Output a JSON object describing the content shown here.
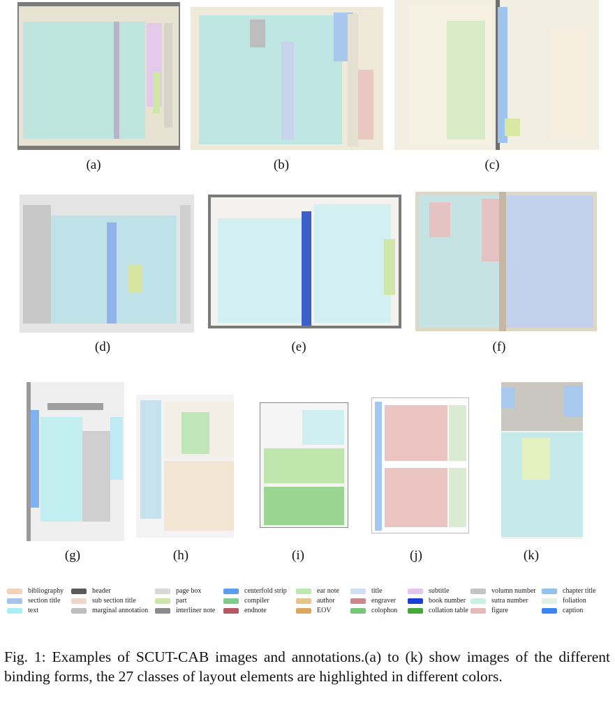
{
  "panels": [
    {
      "id": "a",
      "label": "(a)"
    },
    {
      "id": "b",
      "label": "(b)"
    },
    {
      "id": "c",
      "label": "(c)"
    },
    {
      "id": "d",
      "label": "(d)"
    },
    {
      "id": "e",
      "label": "(e)"
    },
    {
      "id": "f",
      "label": "(f)"
    },
    {
      "id": "g",
      "label": "(g)"
    },
    {
      "id": "h",
      "label": "(h)"
    },
    {
      "id": "i",
      "label": "(i)"
    },
    {
      "id": "j",
      "label": "(j)"
    },
    {
      "id": "k",
      "label": "(k)"
    }
  ],
  "legend": [
    {
      "label": "bibliography",
      "color": "#f2d2b8"
    },
    {
      "label": "section title",
      "color": "#a9c4ea"
    },
    {
      "label": "text",
      "color": "#aaeef4"
    },
    {
      "label": "header",
      "color": "#5a5a5a"
    },
    {
      "label": "sub section title",
      "color": "#efd6c8"
    },
    {
      "label": "marginal annotation",
      "color": "#bdbdbd"
    },
    {
      "label": "page box",
      "color": "#d9d9d9"
    },
    {
      "label": "part",
      "color": "#cfe6a8"
    },
    {
      "label": "interliner note",
      "color": "#8a8a8a"
    },
    {
      "label": "centerfold strip",
      "color": "#5e9cf0"
    },
    {
      "label": "compiler",
      "color": "#80cc8c"
    },
    {
      "label": "endnote",
      "color": "#b55866"
    },
    {
      "label": "ear note",
      "color": "#b9e9b0"
    },
    {
      "label": "author",
      "color": "#e7c48a"
    },
    {
      "label": "EOV",
      "color": "#d9a85c"
    },
    {
      "label": "title",
      "color": "#cfe0f4"
    },
    {
      "label": "engraver",
      "color": "#c9888c"
    },
    {
      "label": "colophon",
      "color": "#77c577"
    },
    {
      "label": "subtitle",
      "color": "#e4c5ee"
    },
    {
      "label": "book number",
      "color": "#1b3fd6"
    },
    {
      "label": "collation table",
      "color": "#46a83a"
    },
    {
      "label": "volumn number",
      "color": "#c4c4c4"
    },
    {
      "label": "sutra number",
      "color": "#c7f2e2"
    },
    {
      "label": "figure",
      "color": "#e6b9b9"
    },
    {
      "label": "chapter title",
      "color": "#92c2ee"
    },
    {
      "label": "foliation",
      "color": "#e3eee4"
    },
    {
      "label": "caption",
      "color": "#3a86ee"
    }
  ],
  "figure_caption": "Fig. 1: Examples of SCUT-CAB images and annotations.(a) to (k) show images of the different binding forms, the 27 classes of layout elements are highlighted in different colors."
}
